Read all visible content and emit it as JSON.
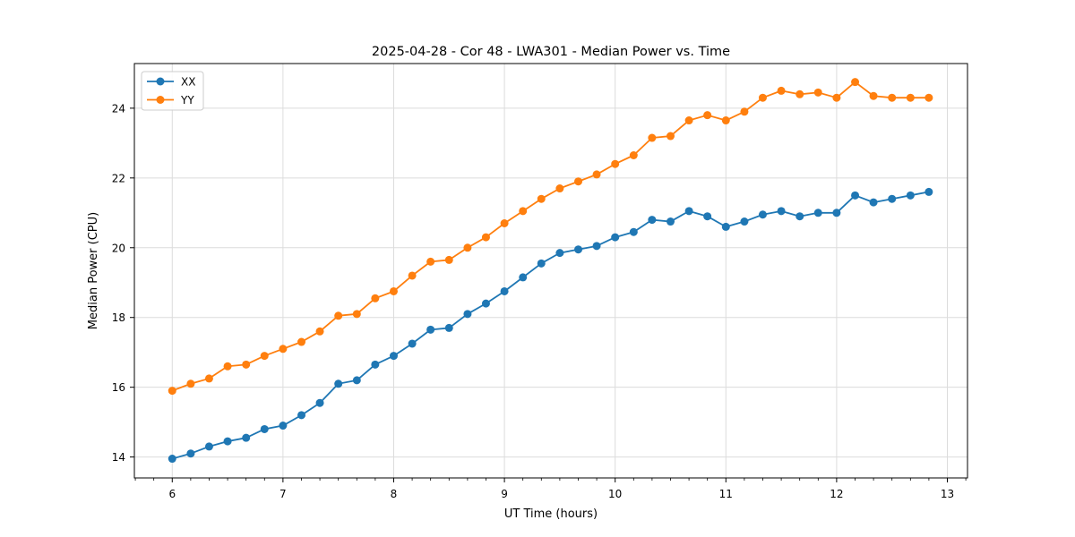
{
  "chart_data": {
    "type": "line",
    "title": "2025-04-28 - Cor 48 - LWA301 - Median Power vs. Time",
    "xlabel": "UT Time (hours)",
    "ylabel": "Median Power (CPU)",
    "xlim": [
      5.658,
      13.182
    ],
    "ylim": [
      13.4,
      25.28
    ],
    "xticks": [
      6,
      7,
      8,
      9,
      10,
      11,
      12,
      13
    ],
    "yticks": [
      14,
      16,
      18,
      20,
      22,
      24
    ],
    "minor_xtick_step": 0.1667,
    "grid": true,
    "legend_position": "upper left",
    "background_color": "#ffffff",
    "grid_color": "#dcdcdc",
    "x": [
      6.0,
      6.167,
      6.333,
      6.5,
      6.667,
      6.833,
      7.0,
      7.167,
      7.333,
      7.5,
      7.667,
      7.833,
      8.0,
      8.167,
      8.333,
      8.5,
      8.667,
      8.833,
      9.0,
      9.167,
      9.333,
      9.5,
      9.667,
      9.833,
      10.0,
      10.167,
      10.333,
      10.5,
      10.667,
      10.833,
      11.0,
      11.167,
      11.333,
      11.5,
      11.667,
      11.833,
      12.0,
      12.167,
      12.333,
      12.5,
      12.667,
      12.833
    ],
    "series": [
      {
        "name": "XX",
        "color": "#1f77b4",
        "values": [
          13.95,
          14.1,
          14.3,
          14.45,
          14.55,
          14.8,
          14.9,
          15.2,
          15.55,
          16.1,
          16.2,
          16.65,
          16.9,
          17.25,
          17.65,
          17.7,
          18.1,
          18.4,
          18.75,
          19.15,
          19.55,
          19.85,
          19.95,
          20.05,
          20.3,
          20.45,
          20.8,
          20.75,
          21.05,
          20.9,
          20.6,
          20.75,
          20.95,
          21.05,
          20.9,
          21.0,
          21.0,
          21.5,
          21.3,
          21.4,
          21.5,
          21.6
        ]
      },
      {
        "name": "YY",
        "color": "#ff7f0e",
        "values": [
          15.9,
          16.1,
          16.25,
          16.6,
          16.65,
          16.9,
          17.1,
          17.3,
          17.6,
          18.05,
          18.1,
          18.55,
          18.75,
          19.2,
          19.6,
          19.65,
          20.0,
          20.3,
          20.7,
          21.05,
          21.4,
          21.7,
          21.9,
          22.1,
          22.4,
          22.65,
          23.15,
          23.2,
          23.65,
          23.8,
          23.65,
          23.9,
          24.3,
          24.5,
          24.4,
          24.45,
          24.3,
          24.75,
          24.35,
          24.3,
          24.3,
          24.3
        ]
      }
    ]
  }
}
